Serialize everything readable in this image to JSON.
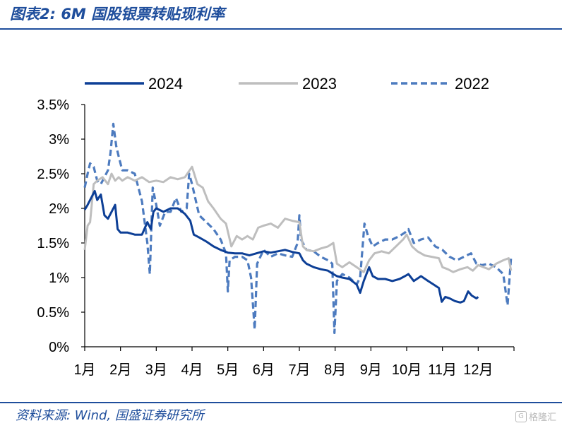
{
  "header": {
    "title": "图表2:  6M 国股银票转贴现利率"
  },
  "footer": {
    "source": "资料来源:  Wind, 国盛证券研究所"
  },
  "watermark": {
    "text": "格隆汇"
  },
  "chart_data": {
    "type": "line",
    "title": "",
    "xlabel": "",
    "ylabel": "",
    "ylim": [
      0,
      3.5
    ],
    "y_ticks": [
      "0%",
      "0.5%",
      "1%",
      "1.5%",
      "2%",
      "2.5%",
      "3%",
      "3.5%"
    ],
    "x_ticks": [
      "1月",
      "2月",
      "3月",
      "4月",
      "5月",
      "6月",
      "7月",
      "8月",
      "9月",
      "10月",
      "11月",
      "12月"
    ],
    "legend_position": "top",
    "x_unit": "month (1 = start of 1月)",
    "series": [
      {
        "name": "2024",
        "color": "#0d3f96",
        "dash": "solid",
        "points": [
          [
            1.0,
            1.98
          ],
          [
            1.08,
            2.05
          ],
          [
            1.18,
            2.15
          ],
          [
            1.28,
            2.25
          ],
          [
            1.35,
            2.12
          ],
          [
            1.45,
            2.2
          ],
          [
            1.55,
            1.9
          ],
          [
            1.65,
            1.85
          ],
          [
            1.75,
            1.95
          ],
          [
            1.85,
            2.05
          ],
          [
            1.92,
            1.7
          ],
          [
            2.0,
            1.65
          ],
          [
            2.2,
            1.65
          ],
          [
            2.4,
            1.62
          ],
          [
            2.6,
            1.62
          ],
          [
            2.75,
            1.8
          ],
          [
            2.85,
            1.7
          ],
          [
            2.92,
            1.95
          ],
          [
            3.0,
            2.0
          ],
          [
            3.2,
            1.95
          ],
          [
            3.4,
            2.0
          ],
          [
            3.6,
            2.0
          ],
          [
            3.8,
            1.92
          ],
          [
            3.95,
            1.82
          ],
          [
            4.05,
            1.62
          ],
          [
            4.2,
            1.58
          ],
          [
            4.4,
            1.52
          ],
          [
            4.6,
            1.45
          ],
          [
            4.8,
            1.4
          ],
          [
            5.0,
            1.36
          ],
          [
            5.2,
            1.35
          ],
          [
            5.4,
            1.35
          ],
          [
            5.6,
            1.32
          ],
          [
            5.8,
            1.35
          ],
          [
            6.0,
            1.38
          ],
          [
            6.2,
            1.36
          ],
          [
            6.4,
            1.38
          ],
          [
            6.6,
            1.4
          ],
          [
            6.8,
            1.37
          ],
          [
            7.0,
            1.35
          ],
          [
            7.1,
            1.25
          ],
          [
            7.2,
            1.2
          ],
          [
            7.4,
            1.15
          ],
          [
            7.6,
            1.12
          ],
          [
            7.8,
            1.1
          ],
          [
            7.95,
            1.05
          ],
          [
            8.05,
            1.02
          ],
          [
            8.2,
            1.0
          ],
          [
            8.4,
            0.98
          ],
          [
            8.6,
            0.9
          ],
          [
            8.7,
            0.78
          ],
          [
            8.8,
            0.95
          ],
          [
            8.95,
            1.15
          ],
          [
            9.05,
            1.02
          ],
          [
            9.2,
            0.98
          ],
          [
            9.4,
            0.98
          ],
          [
            9.6,
            0.95
          ],
          [
            9.8,
            0.98
          ],
          [
            9.95,
            1.02
          ],
          [
            10.05,
            1.05
          ],
          [
            10.2,
            0.95
          ],
          [
            10.4,
            1.02
          ],
          [
            10.6,
            0.95
          ],
          [
            10.75,
            0.9
          ],
          [
            10.9,
            0.85
          ],
          [
            10.98,
            0.65
          ],
          [
            11.08,
            0.72
          ],
          [
            11.2,
            0.7
          ],
          [
            11.35,
            0.66
          ],
          [
            11.5,
            0.64
          ],
          [
            11.6,
            0.66
          ],
          [
            11.72,
            0.8
          ],
          [
            11.82,
            0.74
          ],
          [
            11.95,
            0.7
          ],
          [
            12.0,
            0.72
          ]
        ]
      },
      {
        "name": "2023",
        "color": "#bebebe",
        "dash": "solid",
        "points": [
          [
            1.0,
            1.4
          ],
          [
            1.08,
            1.75
          ],
          [
            1.15,
            1.8
          ],
          [
            1.25,
            2.35
          ],
          [
            1.35,
            2.4
          ],
          [
            1.5,
            2.45
          ],
          [
            1.65,
            2.35
          ],
          [
            1.75,
            2.5
          ],
          [
            1.85,
            2.4
          ],
          [
            1.95,
            2.45
          ],
          [
            2.05,
            2.4
          ],
          [
            2.2,
            2.45
          ],
          [
            2.4,
            2.4
          ],
          [
            2.6,
            2.45
          ],
          [
            2.8,
            2.38
          ],
          [
            3.0,
            2.4
          ],
          [
            3.2,
            2.38
          ],
          [
            3.4,
            2.45
          ],
          [
            3.6,
            2.42
          ],
          [
            3.8,
            2.45
          ],
          [
            4.0,
            2.6
          ],
          [
            4.15,
            2.35
          ],
          [
            4.3,
            2.3
          ],
          [
            4.45,
            2.1
          ],
          [
            4.6,
            2.0
          ],
          [
            4.8,
            1.85
          ],
          [
            4.95,
            1.78
          ],
          [
            5.1,
            1.45
          ],
          [
            5.25,
            1.6
          ],
          [
            5.4,
            1.55
          ],
          [
            5.55,
            1.6
          ],
          [
            5.7,
            1.55
          ],
          [
            5.85,
            1.72
          ],
          [
            6.0,
            1.75
          ],
          [
            6.2,
            1.78
          ],
          [
            6.4,
            1.72
          ],
          [
            6.6,
            1.85
          ],
          [
            6.8,
            1.82
          ],
          [
            7.0,
            1.8
          ],
          [
            7.1,
            1.45
          ],
          [
            7.2,
            1.4
          ],
          [
            7.4,
            1.38
          ],
          [
            7.6,
            1.42
          ],
          [
            7.8,
            1.45
          ],
          [
            7.95,
            1.5
          ],
          [
            8.05,
            1.2
          ],
          [
            8.2,
            1.15
          ],
          [
            8.4,
            1.22
          ],
          [
            8.6,
            1.15
          ],
          [
            8.8,
            1.08
          ],
          [
            8.95,
            1.25
          ],
          [
            9.1,
            1.35
          ],
          [
            9.3,
            1.38
          ],
          [
            9.5,
            1.35
          ],
          [
            9.7,
            1.45
          ],
          [
            9.9,
            1.55
          ],
          [
            10.0,
            1.62
          ],
          [
            10.15,
            1.45
          ],
          [
            10.3,
            1.38
          ],
          [
            10.5,
            1.32
          ],
          [
            10.7,
            1.3
          ],
          [
            10.9,
            1.28
          ],
          [
            11.0,
            1.15
          ],
          [
            11.15,
            1.12
          ],
          [
            11.3,
            1.08
          ],
          [
            11.5,
            1.12
          ],
          [
            11.7,
            1.15
          ],
          [
            11.85,
            1.1
          ],
          [
            12.0,
            1.18
          ],
          [
            12.15,
            1.15
          ],
          [
            12.3,
            1.12
          ],
          [
            12.5,
            1.2
          ],
          [
            12.7,
            1.25
          ],
          [
            12.85,
            1.28
          ],
          [
            12.92,
            1.1
          ]
        ]
      },
      {
        "name": "2022",
        "color": "#4d7bbf",
        "dash": "dashed",
        "points": [
          [
            1.0,
            2.3
          ],
          [
            1.08,
            2.5
          ],
          [
            1.15,
            2.65
          ],
          [
            1.25,
            2.6
          ],
          [
            1.35,
            2.4
          ],
          [
            1.45,
            2.35
          ],
          [
            1.55,
            2.45
          ],
          [
            1.65,
            2.55
          ],
          [
            1.72,
            2.8
          ],
          [
            1.8,
            3.22
          ],
          [
            1.88,
            2.9
          ],
          [
            1.95,
            2.75
          ],
          [
            2.05,
            2.55
          ],
          [
            2.2,
            2.55
          ],
          [
            2.4,
            2.5
          ],
          [
            2.6,
            2.1
          ],
          [
            2.75,
            1.5
          ],
          [
            2.82,
            1.05
          ],
          [
            2.9,
            2.3
          ],
          [
            3.0,
            2.05
          ],
          [
            3.1,
            1.75
          ],
          [
            3.25,
            1.95
          ],
          [
            3.4,
            1.95
          ],
          [
            3.55,
            2.15
          ],
          [
            3.7,
            1.95
          ],
          [
            3.85,
            2.0
          ],
          [
            3.92,
            2.5
          ],
          [
            4.0,
            2.35
          ],
          [
            4.2,
            1.9
          ],
          [
            4.4,
            1.8
          ],
          [
            4.6,
            1.7
          ],
          [
            4.8,
            1.55
          ],
          [
            4.95,
            1.35
          ],
          [
            5.0,
            0.8
          ],
          [
            5.05,
            1.25
          ],
          [
            5.2,
            1.3
          ],
          [
            5.4,
            1.3
          ],
          [
            5.55,
            1.25
          ],
          [
            5.65,
            1.0
          ],
          [
            5.75,
            0.25
          ],
          [
            5.82,
            1.2
          ],
          [
            6.0,
            1.4
          ],
          [
            6.2,
            1.3
          ],
          [
            6.4,
            1.35
          ],
          [
            6.6,
            1.32
          ],
          [
            6.8,
            1.3
          ],
          [
            6.95,
            1.5
          ],
          [
            7.0,
            1.9
          ],
          [
            7.05,
            1.55
          ],
          [
            7.2,
            1.4
          ],
          [
            7.4,
            1.38
          ],
          [
            7.6,
            1.3
          ],
          [
            7.8,
            1.25
          ],
          [
            7.92,
            1.2
          ],
          [
            7.98,
            0.2
          ],
          [
            8.05,
            0.95
          ],
          [
            8.2,
            1.05
          ],
          [
            8.4,
            1.0
          ],
          [
            8.6,
            0.9
          ],
          [
            8.7,
            1.0
          ],
          [
            8.82,
            1.78
          ],
          [
            8.92,
            1.6
          ],
          [
            9.05,
            1.45
          ],
          [
            9.2,
            1.5
          ],
          [
            9.4,
            1.55
          ],
          [
            9.6,
            1.55
          ],
          [
            9.8,
            1.6
          ],
          [
            9.95,
            1.65
          ],
          [
            10.05,
            1.7
          ],
          [
            10.2,
            1.5
          ],
          [
            10.4,
            1.55
          ],
          [
            10.6,
            1.58
          ],
          [
            10.8,
            1.45
          ],
          [
            11.0,
            1.4
          ],
          [
            11.2,
            1.3
          ],
          [
            11.4,
            1.25
          ],
          [
            11.6,
            1.3
          ],
          [
            11.8,
            1.35
          ],
          [
            11.95,
            1.2
          ],
          [
            12.1,
            1.18
          ],
          [
            12.3,
            1.2
          ],
          [
            12.5,
            1.15
          ],
          [
            12.7,
            1.05
          ],
          [
            12.82,
            0.6
          ],
          [
            12.92,
            1.3
          ]
        ]
      }
    ]
  }
}
